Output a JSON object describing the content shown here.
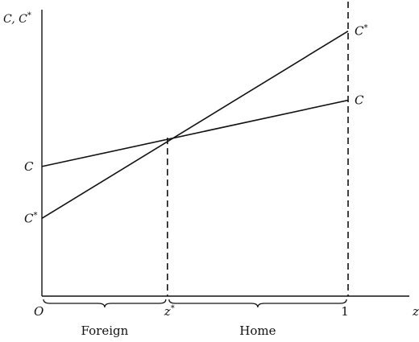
{
  "chart_data": {
    "type": "line",
    "title": "",
    "ylabel": "C, C*",
    "xlabel": "z",
    "xlim": [
      0,
      1.2
    ],
    "ylim": [
      0,
      1.0
    ],
    "series": [
      {
        "name": "C",
        "start_label": "C",
        "end_label": "C",
        "start_sup": "",
        "end_sup": "",
        "x": [
          0,
          1
        ],
        "y": [
          0.45,
          0.68
        ]
      },
      {
        "name": "C*",
        "start_label": "C",
        "end_label": "C",
        "start_sup": "*",
        "end_sup": "*",
        "x": [
          0,
          1
        ],
        "y": [
          0.27,
          0.92
        ]
      }
    ],
    "intersection": {
      "x": 0.41,
      "y": 0.55
    },
    "x_ticks": [
      {
        "value": 0,
        "label": "O",
        "sup": ""
      },
      {
        "value": 0.41,
        "label": "z",
        "sup": "*"
      },
      {
        "value": 1,
        "label": "1",
        "sup": ""
      }
    ],
    "regions": [
      {
        "from": 0,
        "to": 0.41,
        "label": "Foreign"
      },
      {
        "from": 0.41,
        "to": 1,
        "label": "Home"
      }
    ],
    "y_axis_label": {
      "text": "C, C",
      "sup": "*"
    },
    "x_axis_label": "z",
    "line_color": "#111111"
  }
}
